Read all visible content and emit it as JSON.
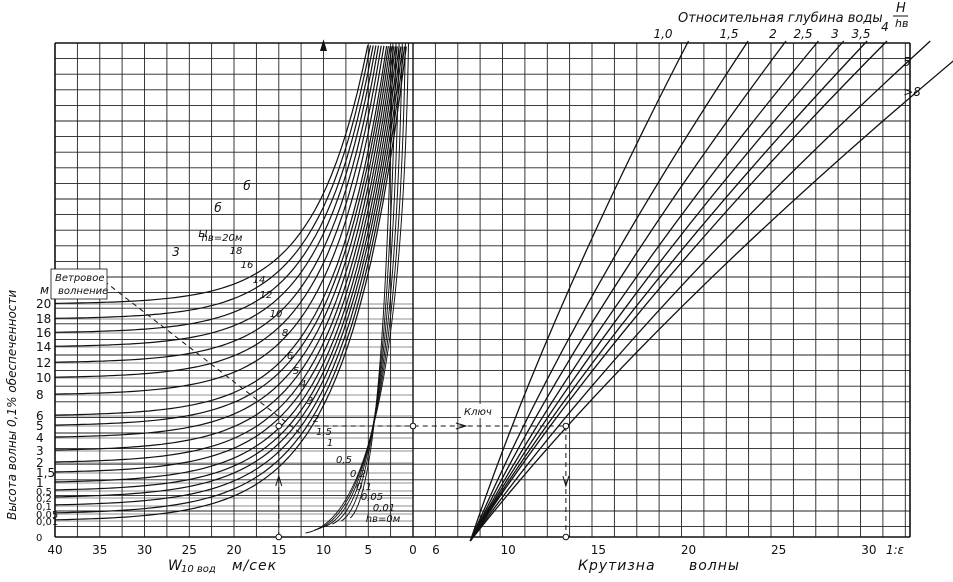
{
  "colors": {
    "ink": "#111111",
    "grid": "#222222",
    "paper": "#ffffff"
  },
  "chart_data": {
    "type": "line",
    "title": "Относительная глубина воды H/hв",
    "title_main": "Относительная глубина воды",
    "title_fraction": {
      "num": "H",
      "den": "hв"
    },
    "ylabel": "Высота волны 0,1% обеспеченности",
    "y_unit": "м",
    "y_ticks": [
      "20",
      "18",
      "16",
      "14",
      "12",
      "10",
      "8",
      "6",
      "5",
      "4",
      "3",
      "2",
      "1,5",
      "1",
      "0,5",
      "0,2",
      "0,1",
      "0,05",
      "0,01",
      "0"
    ],
    "left_panel": {
      "xlabel": "W10 вод  м/сек",
      "xlabel_main": "W",
      "xlabel_sub": "10 вод",
      "xlabel_unit": "м/сек",
      "x_ticks": [
        "40",
        "35",
        "30",
        "25",
        "20",
        "15",
        "10",
        "5",
        "0"
      ],
      "xlim": [
        40,
        0
      ],
      "curve_labels": [
        "hв=20м",
        "18",
        "16",
        "14",
        "12",
        "10",
        "8",
        "6",
        "5",
        "4",
        "3",
        "2",
        "1,5",
        "1",
        "0,5",
        "0,2",
        "0,1",
        "0,05",
        "0,01",
        "hв=0м"
      ],
      "top_curve_labels": [
        "3",
        "ы",
        "б",
        "б"
      ],
      "inset_label": [
        "Ветровое",
        "волнение"
      ],
      "series": [
        {
          "height": 20,
          "v_asym": 5.0
        },
        {
          "height": 18,
          "v_asym": 4.7
        },
        {
          "height": 16,
          "v_asym": 4.4
        },
        {
          "height": 14,
          "v_asym": 4.1
        },
        {
          "height": 12,
          "v_asym": 3.8
        },
        {
          "height": 10,
          "v_asym": 3.5
        },
        {
          "height": 8,
          "v_asym": 3.2
        },
        {
          "height": 6,
          "v_asym": 2.9
        },
        {
          "height": 5,
          "v_asym": 2.7
        },
        {
          "height": 4,
          "v_asym": 2.5
        },
        {
          "height": 3,
          "v_asym": 2.3
        },
        {
          "height": 2,
          "v_asym": 2.1
        },
        {
          "height": 1.5,
          "v_asym": 1.9
        },
        {
          "height": 1,
          "v_asym": 1.7
        },
        {
          "height": 0.5,
          "v_asym": 1.5
        },
        {
          "height": 0.2,
          "v_asym": 1.3
        },
        {
          "height": 0.1,
          "v_asym": 1.1
        },
        {
          "height": 0.05,
          "v_asym": 0.9
        },
        {
          "height": 0.01,
          "v_asym": 0.7
        }
      ]
    },
    "right_panel": {
      "xlabel": "Крутизна волны",
      "x_ticks": [
        "6",
        "10",
        "15",
        "20",
        "25",
        "30"
      ],
      "x_end_label": "1:ε",
      "xlim": [
        6,
        32
      ],
      "series": [
        {
          "name": "1,0",
          "x_at_0": 7.9,
          "x_at_top": 20.0
        },
        {
          "name": "1,5",
          "x_at_0": 7.9,
          "x_at_top": 23.3
        },
        {
          "name": "2",
          "x_at_0": 7.9,
          "x_at_top": 25.4
        },
        {
          "name": "2,5",
          "x_at_0": 7.9,
          "x_at_top": 27.2
        },
        {
          "name": "3",
          "x_at_0": 7.9,
          "x_at_top": 28.6
        },
        {
          "name": "3,5",
          "x_at_0": 7.9,
          "x_at_top": 29.9
        },
        {
          "name": "4",
          "x_at_0": 7.9,
          "x_at_top": 31.0
        },
        {
          "name": "5",
          "x_at_0": 7.9,
          "x_at_top": 33.4
        },
        {
          "name": ">8",
          "x_at_0": 7.9,
          "x_at_top": 36.0
        }
      ]
    },
    "key": {
      "label": "Ключ",
      "wind_speed": 15,
      "wave_height": 5,
      "steepness": 13.2
    },
    "grid": true
  }
}
